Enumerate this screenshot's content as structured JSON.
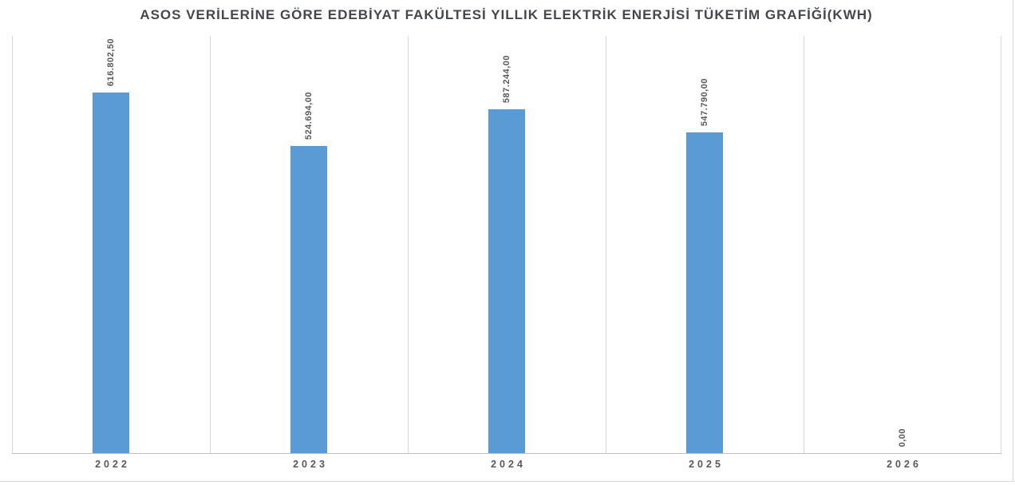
{
  "title": "ASOS VERİLERİNE GÖRE EDEBİYAT FAKÜLTESİ YILLIK ELEKTRİK ENERJİSİ TÜKETİM GRAFİĞİ(KWH)",
  "chart_data": {
    "type": "bar",
    "title": "ASOS VERİLERİNE GÖRE EDEBİYAT FAKÜLTESİ YILLIK ELEKTRİK ENERJİSİ TÜKETİM GRAFİĞİ(KWH)",
    "categories": [
      "2022",
      "2023",
      "2024",
      "2025",
      "2026"
    ],
    "values": [
      616802.5,
      524694.0,
      587244.0,
      547790.0,
      0.0
    ],
    "value_labels": [
      "616.802,50",
      "524.694,00",
      "587.244,00",
      "547.790,00",
      "0,00"
    ],
    "xlabel": "",
    "ylabel": "",
    "ylim": [
      0,
      713000
    ],
    "grid": "vertical-category-separators",
    "legend_position": "none",
    "data_label_rotation": -90,
    "colors": {
      "bar": "#5b9bd5",
      "gridline": "#d9d9d9",
      "axis_line": "#bfbfbf",
      "data_label": "#595959",
      "axis_label": "#595959",
      "title": "#44474c"
    }
  }
}
